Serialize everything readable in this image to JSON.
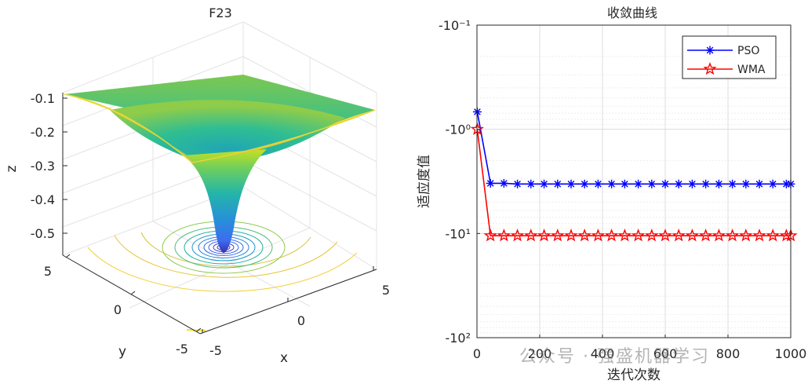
{
  "left_panel": {
    "title": "F23",
    "xlabel": "x",
    "ylabel": "y",
    "zlabel": "z",
    "x_ticks": [
      "-5",
      "0",
      "5"
    ],
    "y_ticks": [
      "-5",
      "0",
      "5"
    ],
    "z_ticks": [
      "-0.1",
      "-0.2",
      "-0.3",
      "-0.4",
      "-0.5"
    ]
  },
  "chart_data": [
    {
      "type": "surface",
      "title": "F23",
      "xlabel": "x",
      "ylabel": "y",
      "zlabel": "z",
      "xlim": [
        -5,
        5
      ],
      "ylim": [
        -5,
        5
      ],
      "zlim": [
        -0.55,
        -0.05
      ],
      "minimum": {
        "x": 0,
        "y": 0,
        "z": -0.54
      },
      "corner_value": -0.09,
      "contour_plot_below": true,
      "colormap": "parula"
    },
    {
      "type": "line",
      "title": "收敛曲线",
      "xlabel": "迭代次数",
      "ylabel": "适应度值",
      "xlim": [
        0,
        1000
      ],
      "x_ticks": [
        0,
        200,
        400,
        600,
        800,
        1000
      ],
      "y_tick_labels": [
        "-10⁻¹",
        "-10⁰",
        "-10¹",
        "-10²"
      ],
      "y_scale": "log, negated, reversed",
      "grid": true,
      "legend_position": "top-right",
      "series": [
        {
          "name": "PSO",
          "color": "#0000ff",
          "marker": "asterisk",
          "x": [
            1,
            43,
            86,
            129,
            172,
            214,
            257,
            300,
            343,
            386,
            429,
            471,
            514,
            557,
            600,
            643,
            686,
            729,
            771,
            814,
            857,
            900,
            943,
            986,
            1000
          ],
          "y": [
            -0.68,
            -3.3,
            -3.3,
            -3.35,
            -3.35,
            -3.35,
            -3.35,
            -3.35,
            -3.35,
            -3.35,
            -3.35,
            -3.35,
            -3.35,
            -3.35,
            -3.35,
            -3.35,
            -3.35,
            -3.35,
            -3.35,
            -3.35,
            -3.35,
            -3.35,
            -3.35,
            -3.35,
            -3.35
          ]
        },
        {
          "name": "WMA",
          "color": "#ff0000",
          "marker": "pentagram",
          "x": [
            1,
            43,
            86,
            129,
            172,
            214,
            257,
            300,
            343,
            386,
            429,
            471,
            514,
            557,
            600,
            643,
            686,
            729,
            771,
            814,
            857,
            900,
            943,
            986,
            1000
          ],
          "y": [
            -1.0,
            -10.5,
            -10.5,
            -10.5,
            -10.5,
            -10.5,
            -10.5,
            -10.5,
            -10.5,
            -10.5,
            -10.5,
            -10.5,
            -10.5,
            -10.5,
            -10.5,
            -10.5,
            -10.5,
            -10.5,
            -10.5,
            -10.5,
            -10.5,
            -10.5,
            -10.5,
            -10.5,
            -10.5
          ]
        }
      ]
    }
  ],
  "watermark": "公众号 · 强盛机器学习"
}
